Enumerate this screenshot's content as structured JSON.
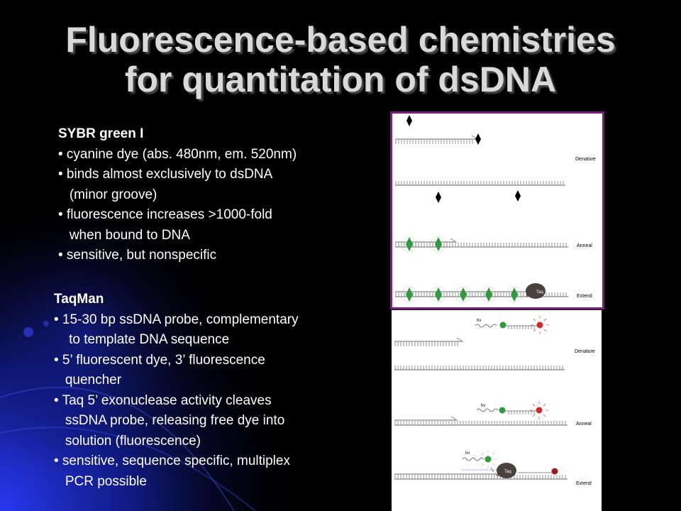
{
  "slide": {
    "title_line1": "Fluorescence-based chemistries",
    "title_line2": "for quantitation of dsDNA"
  },
  "sybr": {
    "heading": "SYBR green I",
    "lines": [
      "• cyanine dye (abs. 480nm, em. 520nm)",
      "• binds almost exclusively to dsDNA",
      "   (minor groove)",
      "• fluorescence increases >1000-fold",
      "   when bound to DNA",
      "• sensitive, but nonspecific"
    ],
    "figure_labels": {
      "denature": "Denature",
      "anneal": "Anneal",
      "extend": "Extend",
      "polymerase": "Taq"
    }
  },
  "taqman": {
    "heading": "TaqMan",
    "lines": [
      "• 15-30 bp ssDNA probe, complementary",
      "    to template DNA sequence",
      "• 5’ fluorescent dye, 3’ fluorescence",
      "   quencher",
      "• Taq 5’ exonuclease activity cleaves",
      "   ssDNA probe, releasing free dye into",
      "   solution (fluorescence)",
      "• sensitive, sequence specific, multiplex",
      "   PCR possible"
    ],
    "figure_labels": {
      "denature": "Denature",
      "anneal": "Anneal",
      "extend": "Extend",
      "polymerase": "Taq",
      "light": "hν"
    }
  },
  "colors": {
    "background": "#000000",
    "glow": "#1a2bd8",
    "title": "#d9d9d9",
    "frame": "#7b1f7e",
    "dye": "#2e9c3a",
    "quencher": "#d9262e"
  }
}
